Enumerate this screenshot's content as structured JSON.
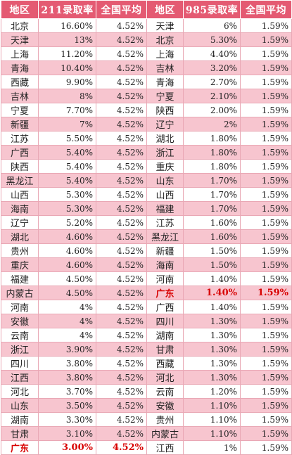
{
  "headers": [
    "地区",
    "211录取率",
    "全国平均",
    "地区",
    "985录取率",
    "全国平均"
  ],
  "highlight_color": "#d80000",
  "header_color": "#e45a72",
  "stripe_color": "#f7c5cf",
  "rows": [
    {
      "p1": "北京",
      "r211": "16.60%",
      "avg1": "4.52%",
      "p2": "天津",
      "r985": "6%",
      "avg2": "1.59%"
    },
    {
      "p1": "天津",
      "r211": "13%",
      "avg1": "4.52%",
      "p2": "北京",
      "r985": "5.30%",
      "avg2": "1.59%"
    },
    {
      "p1": "上海",
      "r211": "11.20%",
      "avg1": "4.52%",
      "p2": "上海",
      "r985": "4.40%",
      "avg2": "1.59%"
    },
    {
      "p1": "青海",
      "r211": "10.40%",
      "avg1": "4.52%",
      "p2": "吉林",
      "r985": "3.20%",
      "avg2": "1.59%"
    },
    {
      "p1": "西藏",
      "r211": "9.90%",
      "avg1": "4.52%",
      "p2": "青海",
      "r985": "2.70%",
      "avg2": "1.59%"
    },
    {
      "p1": "吉林",
      "r211": "8%",
      "avg1": "4.52%",
      "p2": "宁夏",
      "r985": "2.10%",
      "avg2": "1.59%"
    },
    {
      "p1": "宁夏",
      "r211": "7.70%",
      "avg1": "4.52%",
      "p2": "陕西",
      "r985": "2.00%",
      "avg2": "1.59%"
    },
    {
      "p1": "新疆",
      "r211": "7%",
      "avg1": "4.52%",
      "p2": "辽宁",
      "r985": "2%",
      "avg2": "1.59%"
    },
    {
      "p1": "江苏",
      "r211": "5.50%",
      "avg1": "4.52%",
      "p2": "湖北",
      "r985": "1.80%",
      "avg2": "1.59%"
    },
    {
      "p1": "广西",
      "r211": "5.40%",
      "avg1": "4.52%",
      "p2": "浙江",
      "r985": "1.80%",
      "avg2": "1.59%"
    },
    {
      "p1": "陕西",
      "r211": "5.40%",
      "avg1": "4.52%",
      "p2": "重庆",
      "r985": "1.80%",
      "avg2": "1.59%"
    },
    {
      "p1": "黑龙江",
      "r211": "5.40%",
      "avg1": "4.52%",
      "p2": "山东",
      "r985": "1.70%",
      "avg2": "1.59%"
    },
    {
      "p1": "山西",
      "r211": "5.30%",
      "avg1": "4.52%",
      "p2": "山西",
      "r985": "1.70%",
      "avg2": "1.59%"
    },
    {
      "p1": "海南",
      "r211": "5.30%",
      "avg1": "4.52%",
      "p2": "福建",
      "r985": "1.70%",
      "avg2": "1.59%"
    },
    {
      "p1": "辽宁",
      "r211": "5.20%",
      "avg1": "4.52%",
      "p2": "江苏",
      "r985": "1.60%",
      "avg2": "1.59%"
    },
    {
      "p1": "湖北",
      "r211": "4.60%",
      "avg1": "4.52%",
      "p2": "黑龙江",
      "r985": "1.60%",
      "avg2": "1.59%"
    },
    {
      "p1": "贵州",
      "r211": "4.60%",
      "avg1": "4.52%",
      "p2": "新疆",
      "r985": "1.50%",
      "avg2": "1.59%"
    },
    {
      "p1": "重庆",
      "r211": "4.60%",
      "avg1": "4.52%",
      "p2": "海南",
      "r985": "1.50%",
      "avg2": "1.59%"
    },
    {
      "p1": "福建",
      "r211": "4.50%",
      "avg1": "4.52%",
      "p2": "河南",
      "r985": "1.40%",
      "avg2": "1.59%"
    },
    {
      "p1": "内蒙古",
      "r211": "4.50%",
      "avg1": "4.52%",
      "p2": "广东",
      "r985": "1.40%",
      "avg2": "1.59%",
      "hl2": true
    },
    {
      "p1": "河南",
      "r211": "4%",
      "avg1": "4.52%",
      "p2": "广西",
      "r985": "1.40%",
      "avg2": "1.59%"
    },
    {
      "p1": "安徽",
      "r211": "4%",
      "avg1": "4.52%",
      "p2": "四川",
      "r985": "1.30%",
      "avg2": "1.59%"
    },
    {
      "p1": "云南",
      "r211": "4%",
      "avg1": "4.52%",
      "p2": "湖南",
      "r985": "1.30%",
      "avg2": "1.59%"
    },
    {
      "p1": "浙江",
      "r211": "3.90%",
      "avg1": "4.52%",
      "p2": "甘肃",
      "r985": "1.30%",
      "avg2": "1.59%"
    },
    {
      "p1": "四川",
      "r211": "3.80%",
      "avg1": "4.52%",
      "p2": "西藏",
      "r985": "1.30%",
      "avg2": "1.59%"
    },
    {
      "p1": "江西",
      "r211": "3.80%",
      "avg1": "4.52%",
      "p2": "河北",
      "r985": "1.30%",
      "avg2": "1.59%"
    },
    {
      "p1": "河北",
      "r211": "3.70%",
      "avg1": "4.52%",
      "p2": "云南",
      "r985": "1.20%",
      "avg2": "1.59%"
    },
    {
      "p1": "山东",
      "r211": "3.50%",
      "avg1": "4.52%",
      "p2": "安徽",
      "r985": "1.10%",
      "avg2": "1.59%"
    },
    {
      "p1": "湖南",
      "r211": "3.30%",
      "avg1": "4.52%",
      "p2": "贵州",
      "r985": "1.10%",
      "avg2": "1.59%"
    },
    {
      "p1": "甘肃",
      "r211": "3.10%",
      "avg1": "4.52%",
      "p2": "内蒙古",
      "r985": "1.10%",
      "avg2": "1.59%"
    },
    {
      "p1": "广东",
      "r211": "3.00%",
      "avg1": "4.52%",
      "p2": "江西",
      "r985": "1%",
      "avg2": "1.59%",
      "hl1": true
    }
  ]
}
